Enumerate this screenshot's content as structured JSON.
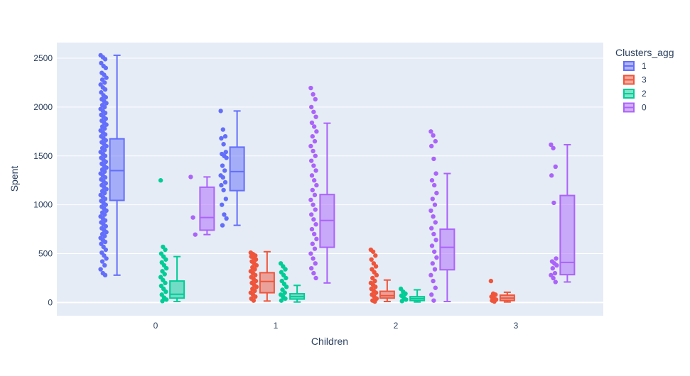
{
  "chart_data": {
    "type": "box",
    "xlabel": "Children",
    "ylabel": "Spent",
    "categories": [
      "0",
      "1",
      "2",
      "3"
    ],
    "ylim": [
      -135,
      2660
    ],
    "yticks": [
      0,
      500,
      1000,
      1500,
      2000,
      2500
    ],
    "legend": {
      "title": "Clusters_agg",
      "placement": "right"
    },
    "series": [
      {
        "name": "1",
        "color": "#636efa",
        "boxes": {
          "0": {
            "min": 280,
            "q1": 1045,
            "median": 1350,
            "q3": 1675,
            "max": 2530
          },
          "1": {
            "min": 790,
            "q1": 1145,
            "median": 1340,
            "q3": 1590,
            "max": 1960
          }
        },
        "points": {
          "0": [
            2530,
            2510,
            2490,
            2450,
            2420,
            2400,
            2350,
            2330,
            2300,
            2280,
            2250,
            2230,
            2200,
            2180,
            2150,
            2120,
            2100,
            2080,
            2060,
            2040,
            2020,
            2000,
            1980,
            1960,
            1940,
            1920,
            1900,
            1880,
            1860,
            1840,
            1820,
            1800,
            1780,
            1760,
            1740,
            1720,
            1700,
            1680,
            1660,
            1640,
            1620,
            1600,
            1580,
            1560,
            1540,
            1520,
            1500,
            1480,
            1460,
            1440,
            1420,
            1400,
            1380,
            1360,
            1340,
            1320,
            1300,
            1280,
            1260,
            1240,
            1220,
            1200,
            1180,
            1160,
            1140,
            1120,
            1100,
            1080,
            1060,
            1040,
            1020,
            1000,
            980,
            960,
            940,
            920,
            900,
            880,
            860,
            840,
            820,
            800,
            780,
            760,
            740,
            720,
            700,
            680,
            660,
            640,
            620,
            600,
            570,
            540,
            510,
            480,
            450,
            420,
            380,
            340,
            300,
            280
          ],
          "1": [
            1960,
            1770,
            1700,
            1680,
            1620,
            1540,
            1520,
            1500,
            1480,
            1400,
            1350,
            1300,
            1280,
            1230,
            1200,
            1150,
            1060,
            1000,
            900,
            860,
            790
          ]
        }
      },
      {
        "name": "3",
        "color": "#ef553b",
        "boxes": {
          "1": {
            "min": 15,
            "q1": 100,
            "median": 215,
            "q3": 305,
            "max": 520
          },
          "2": {
            "min": 10,
            "q1": 45,
            "median": 70,
            "q3": 115,
            "max": 230
          },
          "3": {
            "min": 5,
            "q1": 20,
            "median": 45,
            "q3": 75,
            "max": 105
          }
        },
        "points": {
          "1": [
            510,
            495,
            480,
            470,
            460,
            440,
            420,
            400,
            380,
            360,
            340,
            320,
            300,
            280,
            260,
            240,
            220,
            200,
            180,
            160,
            140,
            120,
            100,
            80,
            60,
            40,
            20
          ],
          "2": [
            540,
            520,
            480,
            440,
            400,
            370,
            340,
            310,
            280,
            250,
            220,
            200,
            180,
            160,
            140,
            120,
            100,
            80,
            60,
            40,
            20,
            10
          ],
          "3": [
            220,
            90,
            80,
            60,
            45,
            30,
            20,
            10
          ]
        }
      },
      {
        "name": "2",
        "color": "#00cc96",
        "boxes": {
          "0": {
            "min": 10,
            "q1": 45,
            "median": 85,
            "q3": 220,
            "max": 470
          },
          "1": {
            "min": 5,
            "q1": 35,
            "median": 60,
            "q3": 90,
            "max": 175
          },
          "2": {
            "min": 5,
            "q1": 20,
            "median": 40,
            "q3": 60,
            "max": 130
          }
        },
        "points": {
          "0": [
            1250,
            570,
            540,
            500,
            470,
            440,
            410,
            380,
            350,
            320,
            290,
            260,
            230,
            200,
            170,
            140,
            110,
            80,
            50,
            30,
            15
          ],
          "1": [
            400,
            370,
            340,
            310,
            280,
            250,
            220,
            190,
            160,
            130,
            100,
            80,
            60,
            40,
            20
          ],
          "2": [
            140,
            110,
            90,
            70,
            50,
            30,
            15
          ]
        }
      },
      {
        "name": "0",
        "color": "#ab63fa",
        "boxes": {
          "0": {
            "min": 695,
            "q1": 740,
            "median": 870,
            "q3": 1180,
            "max": 1285
          },
          "1": {
            "min": 200,
            "q1": 565,
            "median": 840,
            "q3": 1105,
            "max": 1835
          },
          "2": {
            "min": 10,
            "q1": 335,
            "median": 565,
            "q3": 750,
            "max": 1320
          },
          "3": {
            "min": 210,
            "q1": 285,
            "median": 410,
            "q3": 1095,
            "max": 1615
          }
        },
        "points": {
          "0": [
            1285,
            870,
            695
          ],
          "1": [
            2195,
            2130,
            2080,
            2000,
            1950,
            1900,
            1840,
            1800,
            1750,
            1700,
            1650,
            1600,
            1550,
            1500,
            1450,
            1400,
            1350,
            1300,
            1250,
            1200,
            1150,
            1100,
            1050,
            1000,
            950,
            900,
            850,
            800,
            750,
            700,
            650,
            600,
            550,
            500,
            450,
            400,
            350,
            300,
            250
          ],
          "2": [
            1750,
            1710,
            1650,
            1600,
            1470,
            1320,
            1250,
            1200,
            1120,
            1060,
            1000,
            940,
            880,
            820,
            760,
            700,
            640,
            580,
            520,
            460,
            400,
            340,
            280,
            220,
            150,
            80,
            20
          ],
          "3": [
            1615,
            1580,
            1390,
            1300,
            1020,
            450,
            420,
            400,
            380,
            350,
            300,
            280,
            250,
            210
          ]
        }
      }
    ]
  }
}
